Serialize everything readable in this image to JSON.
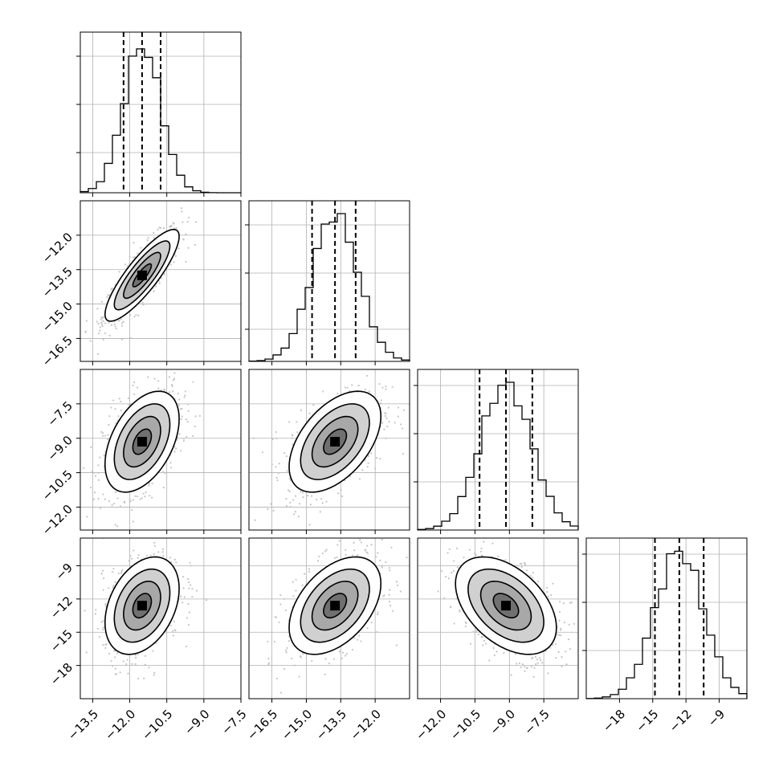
{
  "chart_data": {
    "type": "corner",
    "n_params": 4,
    "params": [
      {
        "mean": -11.5,
        "std": 0.75,
        "range": [
          -14.0,
          -7.5
        ],
        "quantiles": [
          -12.25,
          -11.5,
          -10.75
        ],
        "ticks": [
          -13.5,
          -12.0,
          -10.5,
          -9.0,
          -7.5
        ],
        "tick_labels": [
          "−13.5",
          "−12.0",
          "−10.5",
          "−9.0",
          "−7.5"
        ]
      },
      {
        "mean": -13.75,
        "std": 1.0,
        "range": [
          -17.5,
          -10.5
        ],
        "quantiles": [
          -14.75,
          -13.75,
          -12.85
        ],
        "ticks": [
          -16.5,
          -15.0,
          -13.5,
          -12.0
        ],
        "tick_labels": [
          "−16.5",
          "−15.0",
          "−13.5",
          "−12.0"
        ]
      },
      {
        "mean": -9.15,
        "std": 1.1,
        "range": [
          -13.0,
          -6.0
        ],
        "quantiles": [
          -10.3,
          -9.15,
          -8.0
        ],
        "ticks": [
          -12.0,
          -10.5,
          -9.0,
          -7.5
        ],
        "tick_labels": [
          "−12.0",
          "−10.5",
          "−9.0",
          "−7.5"
        ]
      },
      {
        "mean": -12.6,
        "std": 2.2,
        "range": [
          -21.0,
          -6.5
        ],
        "quantiles": [
          -14.8,
          -12.6,
          -10.4
        ],
        "ticks": [
          -18,
          -15,
          -12,
          -9
        ],
        "tick_labels": [
          "−18",
          "−15",
          "−12",
          "−9"
        ]
      }
    ],
    "correlations": [
      [
        1,
        0.85,
        0.45,
        0.35
      ],
      [
        0.85,
        1,
        0.5,
        0.45
      ],
      [
        0.45,
        0.5,
        1,
        -0.45
      ],
      [
        0.35,
        0.45,
        -0.45,
        1
      ]
    ],
    "histogram_yticks": [
      [
        0.25,
        0.55,
        0.85
      ],
      [
        0.2,
        0.55,
        0.85
      ],
      [
        0.3,
        0.6,
        0.9
      ],
      [
        0.3,
        0.6,
        0.9
      ]
    ],
    "grid": true,
    "contour_levels_sigma": [
      0.5,
      1.0,
      1.5,
      2.0
    ]
  }
}
